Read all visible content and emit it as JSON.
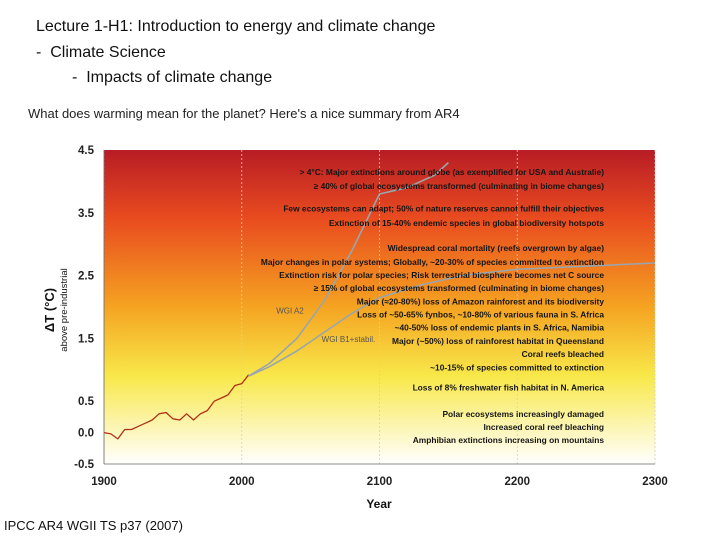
{
  "header": {
    "lecture_code": "Lecture 1-H1",
    "lecture_title": ": Introduction to energy and climate change",
    "bullet_1": "Climate Science",
    "bullet_2": "Impacts of climate change",
    "bullet_marker": "-"
  },
  "intro_text": "What does warming mean for the planet? Here's a nice summary from AR4",
  "caption": "IPCC AR4 WGII TS p37 (2007)",
  "colors": {
    "gradient_top": "#b81c25",
    "gradient_mid": "#e94c1f",
    "gradient_orange": "#f5a321",
    "gradient_yellow": "#f8e84a",
    "gradient_bottom": "#ffffff",
    "observed_line": "#b03018",
    "scenario_line": "#9aa5ad"
  },
  "chart_data": {
    "type": "line",
    "xlabel": "Year",
    "ylabel": "ΔT (°C)",
    "ylabel_sub": "above pre-industrial",
    "xlim": [
      1900,
      2300
    ],
    "ylim": [
      -0.5,
      4.5
    ],
    "x_ticks": [
      "1900",
      "2000",
      "2100",
      "2200",
      "2300"
    ],
    "y_ticks": [
      "4.5",
      "3.5",
      "2.5",
      "1.5",
      "0.5",
      "0.0",
      "-0.5"
    ],
    "x_tick_values": [
      1900,
      2000,
      2100,
      2200,
      2300
    ],
    "y_tick_values": [
      4.5,
      3.5,
      2.5,
      1.5,
      0.5,
      0.0,
      -0.5
    ],
    "series": [
      {
        "name": "",
        "x": [
          1900,
          1905,
          1910,
          1915,
          1920,
          1925,
          1930,
          1935,
          1940,
          1945,
          1950,
          1955,
          1960,
          1965,
          1970,
          1975,
          1980,
          1985,
          1990,
          1995,
          2000,
          2005
        ],
        "y": [
          0.0,
          -0.02,
          -0.1,
          0.05,
          0.05,
          0.1,
          0.15,
          0.2,
          0.3,
          0.32,
          0.22,
          0.2,
          0.3,
          0.2,
          0.3,
          0.35,
          0.5,
          0.55,
          0.6,
          0.75,
          0.78,
          0.92
        ]
      },
      {
        "name": "WGI A2",
        "x": [
          2005,
          2020,
          2040,
          2060,
          2080,
          2100,
          2120,
          2140,
          2150
        ],
        "y": [
          0.9,
          1.1,
          1.5,
          2.1,
          2.9,
          3.8,
          3.9,
          4.1,
          4.3
        ]
      },
      {
        "name": "WGI B1+stabil.",
        "x": [
          2005,
          2020,
          2040,
          2060,
          2080,
          2100,
          2130,
          2160,
          2200,
          2250,
          2300
        ],
        "y": [
          0.9,
          1.05,
          1.3,
          1.6,
          1.9,
          2.15,
          2.35,
          2.5,
          2.6,
          2.65,
          2.7
        ]
      }
    ],
    "annotations": [
      {
        "text": "> 4°C: Major extinctions around globe (as exemplified for USA and Australie)",
        "y": 4.15
      },
      {
        "text": "≥ 40% of global ecosystems transformed (culminating in biome changes)",
        "y": 3.93
      },
      {
        "text": "Few ecosystems can adapt;  50% of nature reserves cannot fulfill their objectives",
        "y": 3.57
      },
      {
        "text": "Extinction of 15-40% endemic species in global biodiversity hotspots",
        "y": 3.34
      },
      {
        "text": "Widespread coral mortality (reefs overgrown by algae)",
        "y": 2.94
      },
      {
        "text": "Major changes in polar systems;  Globally, ~20-30% of species committed to extinction",
        "y": 2.72
      },
      {
        "text": "Extinction risk for polar species;  Risk terrestrial biosphere becomes net C source",
        "y": 2.51
      },
      {
        "text": "≥ 15% of global ecosystems transformed (culminating in biome changes)",
        "y": 2.3
      },
      {
        "text": "Major (≈20-80%) loss of Amazon rainforest and its biodiversity",
        "y": 2.09
      },
      {
        "text": "Loss of ~50-65% fynbos, ~10-80% of various fauna in S. Africa",
        "y": 1.88
      },
      {
        "text": "~40-50% loss of endemic plants in S. Africa, Namibia",
        "y": 1.67
      },
      {
        "text": "Major (~50%) loss of rainforest habitat in Queensland",
        "y": 1.46
      },
      {
        "text": "Coral reefs bleached",
        "y": 1.25
      },
      {
        "text": "~10-15% of species committed to extinction",
        "y": 1.04
      },
      {
        "text": "Loss of 8% freshwater fish habitat in N. America",
        "y": 0.72
      },
      {
        "text": "Polar ecosystems increasingly damaged",
        "y": 0.3
      },
      {
        "text": "Increased coral reef bleaching",
        "y": 0.09
      },
      {
        "text": "Amphibian extinctions increasing on mountains",
        "y": -0.12
      }
    ]
  }
}
